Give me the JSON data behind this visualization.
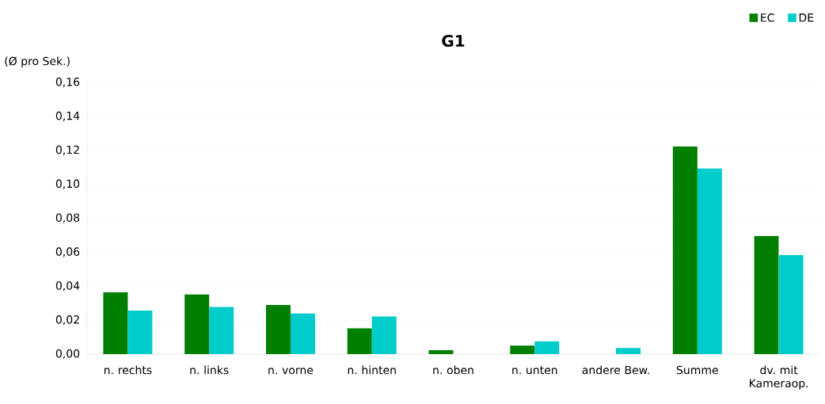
{
  "chart_data": {
    "type": "bar",
    "title": "G1",
    "ylabel": "(Ø pro Sek.)",
    "categories": [
      "n. rechts",
      "n. links",
      "n. vorne",
      "n. hinten",
      "n. oben",
      "n. unten",
      "andere Bew.",
      "Summe",
      "dv. mit Kameraop."
    ],
    "series": [
      {
        "name": "EC",
        "color": "#007f00",
        "values": [
          0.0364,
          0.0351,
          0.0289,
          0.0151,
          0.0023,
          0.005,
          0,
          0.1223,
          0.0695
        ]
      },
      {
        "name": "DE",
        "color": "#00cccc",
        "values": [
          0.0257,
          0.0277,
          0.0239,
          0.0221,
          0,
          0.0075,
          0.0036,
          0.1093,
          0.0583
        ]
      }
    ],
    "ylim": [
      0,
      0.16
    ],
    "yticks": [
      {
        "value": 0,
        "label": "0,00"
      },
      {
        "value": 0.02,
        "label": "0,02"
      },
      {
        "value": 0.04,
        "label": "0,04"
      },
      {
        "value": 0.06,
        "label": "0,06"
      },
      {
        "value": 0.08,
        "label": "0,08"
      },
      {
        "value": 0.1,
        "label": "0,10"
      },
      {
        "value": 0.12,
        "label": "0,12"
      },
      {
        "value": 0.14,
        "label": "0,14"
      },
      {
        "value": 0.16,
        "label": "0,16"
      }
    ],
    "grid": "y",
    "legend": "top right"
  }
}
